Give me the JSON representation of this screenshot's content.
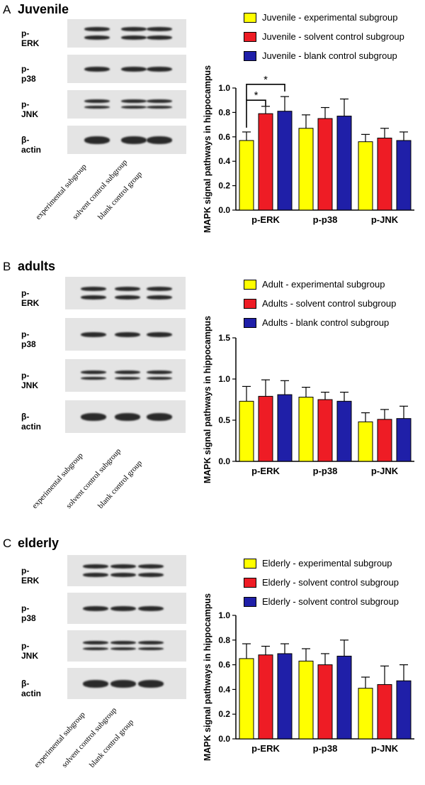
{
  "colors": {
    "experimental": "#ffff00",
    "solvent": "#ee1c25",
    "blank": "#1f1fa8"
  },
  "blot_labels": [
    "p-ERK",
    "p-p38",
    "p-JNK",
    "β-actin"
  ],
  "lane_labels": [
    "experimental subgroup",
    "solvent control subgroup",
    "blank control group"
  ],
  "panels": [
    {
      "letter": "A",
      "title": "Juvenile",
      "legend": [
        "Juvenile - experimental subgroup",
        "Juvenile - solvent control subgroup",
        "Juvenile - blank control subgroup"
      ]
    },
    {
      "letter": "B",
      "title": "adults",
      "legend": [
        "Adult - experimental subgroup",
        "Adults - solvent control subgroup",
        "Adults - blank control subgroup"
      ]
    },
    {
      "letter": "C",
      "title": "elderly",
      "legend": [
        "Elderly - experimental subgroup",
        "Elderly - solvent control subgroup",
        "Elderly - solvent control subgroup"
      ]
    }
  ],
  "chart_data": [
    {
      "type": "bar",
      "categories": [
        "p-ERK",
        "p-p38",
        "p-JNK"
      ],
      "ylabel": "MAPK signal pathways in hippocampus",
      "ylim": [
        0,
        1.0
      ],
      "yticks": [
        "0.0",
        "0.2",
        "0.4",
        "0.6",
        "0.8",
        "1.0"
      ],
      "significance": [
        "*",
        "*"
      ],
      "series": [
        {
          "name": "Juvenile - experimental subgroup",
          "values": [
            0.57,
            0.67,
            0.56
          ],
          "errors": [
            0.07,
            0.11,
            0.06
          ]
        },
        {
          "name": "Juvenile - solvent control subgroup",
          "values": [
            0.79,
            0.75,
            0.59
          ],
          "errors": [
            0.06,
            0.09,
            0.08
          ]
        },
        {
          "name": "Juvenile - blank control subgroup",
          "values": [
            0.81,
            0.77,
            0.57
          ],
          "errors": [
            0.12,
            0.14,
            0.07
          ]
        }
      ]
    },
    {
      "type": "bar",
      "categories": [
        "p-ERK",
        "p-p38",
        "p-JNK"
      ],
      "ylabel": "MAPK signal pathways in hippocampus",
      "ylim": [
        0,
        1.5
      ],
      "yticks": [
        "0.0",
        "0.5",
        "1.0",
        "1.5"
      ],
      "series": [
        {
          "name": "Adult - experimental subgroup",
          "values": [
            0.73,
            0.78,
            0.48
          ],
          "errors": [
            0.18,
            0.12,
            0.11
          ]
        },
        {
          "name": "Adults - solvent control subgroup",
          "values": [
            0.79,
            0.75,
            0.51
          ],
          "errors": [
            0.2,
            0.09,
            0.12
          ]
        },
        {
          "name": "Adults - blank control subgroup",
          "values": [
            0.81,
            0.73,
            0.52
          ],
          "errors": [
            0.17,
            0.11,
            0.15
          ]
        }
      ]
    },
    {
      "type": "bar",
      "categories": [
        "p-ERK",
        "p-p38",
        "p-JNK"
      ],
      "ylabel": "MAPK signal pathways in hippocampus",
      "ylim": [
        0,
        1.0
      ],
      "yticks": [
        "0.0",
        "0.2",
        "0.4",
        "0.6",
        "0.8",
        "1.0"
      ],
      "series": [
        {
          "name": "Elderly - experimental subgroup",
          "values": [
            0.65,
            0.63,
            0.41
          ],
          "errors": [
            0.12,
            0.1,
            0.09
          ]
        },
        {
          "name": "Elderly - solvent control subgroup",
          "values": [
            0.68,
            0.6,
            0.44
          ],
          "errors": [
            0.07,
            0.09,
            0.15
          ]
        },
        {
          "name": "Elderly - solvent control subgroup",
          "values": [
            0.69,
            0.67,
            0.47
          ],
          "errors": [
            0.08,
            0.13,
            0.13
          ]
        }
      ]
    }
  ]
}
